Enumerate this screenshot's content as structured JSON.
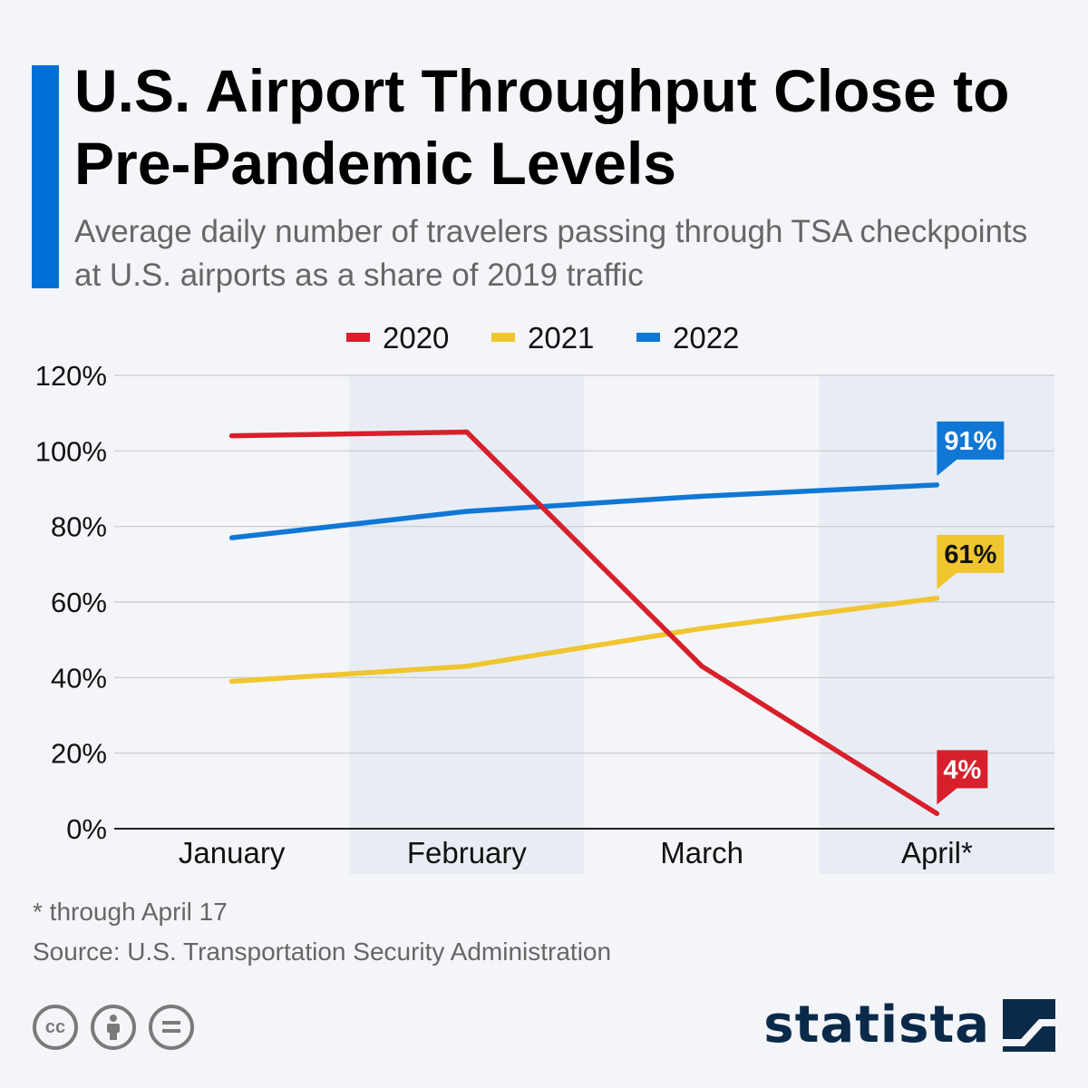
{
  "title": "U.S. Airport Throughput Close to Pre-Pandemic Levels",
  "subtitle": "Average daily number of travelers passing through TSA checkpoints at U.S. airports as a share of 2019 traffic",
  "footnote": "* through April 17",
  "source": "Source: U.S. Transportation Security Administration",
  "brand": "statista",
  "icons": {
    "license": [
      "cc-icon",
      "attribution-icon",
      "no-derivatives-icon"
    ],
    "brand": "statista-logo-icon"
  },
  "chart_data": {
    "type": "line",
    "categories": [
      "January",
      "February",
      "March",
      "April*"
    ],
    "series": [
      {
        "name": "2020",
        "color": "#d7202b",
        "values": [
          104,
          105,
          43,
          4
        ],
        "end_label": "4%"
      },
      {
        "name": "2021",
        "color": "#f0c530",
        "values": [
          39,
          43,
          53,
          61
        ],
        "end_label": "61%"
      },
      {
        "name": "2022",
        "color": "#0f77d6",
        "values": [
          77,
          84,
          88,
          91
        ],
        "end_label": "91%"
      }
    ],
    "y_ticks": [
      "0%",
      "20%",
      "40%",
      "60%",
      "80%",
      "100%",
      "120%"
    ],
    "ylim": [
      0,
      120
    ],
    "grid": true,
    "legend": "top-center",
    "shaded_categories": [
      "February",
      "April*"
    ]
  }
}
